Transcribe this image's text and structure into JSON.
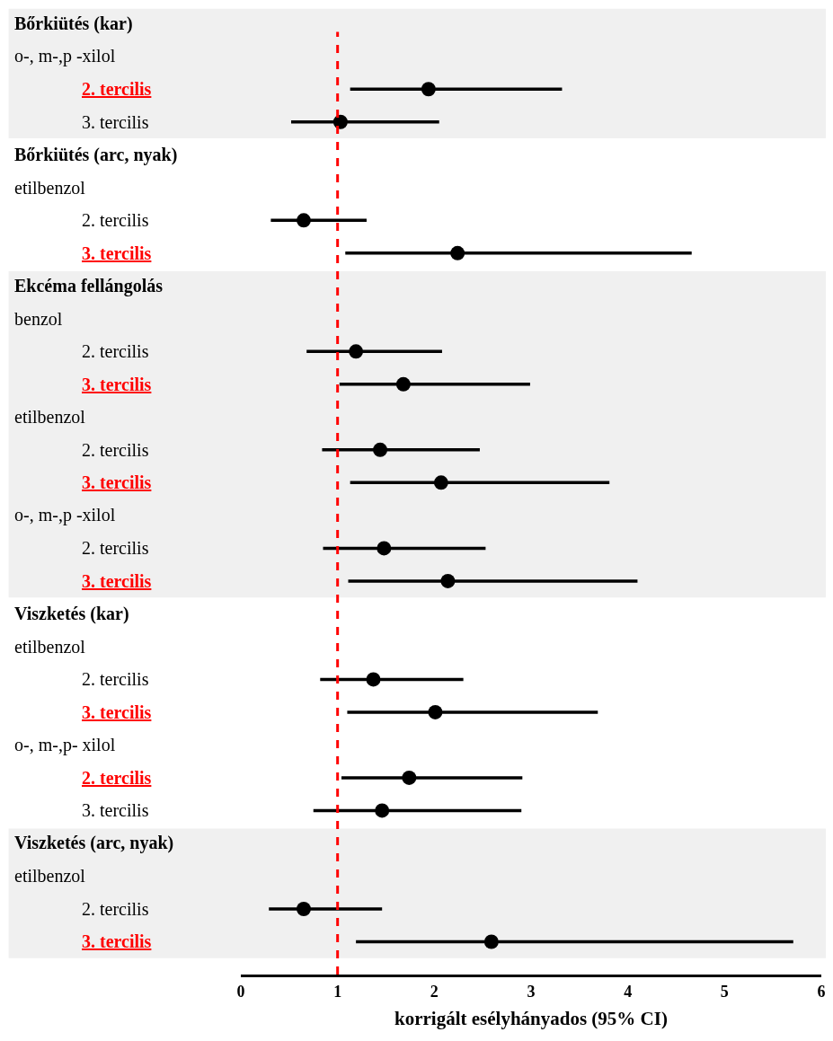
{
  "chart_data": {
    "type": "scatter",
    "orientation": "horizontal",
    "categories": [
      null,
      null,
      "2. tercilis",
      "3. tercilis",
      null,
      null,
      "2. tercilis",
      "3. tercilis",
      null,
      null,
      "2. tercilis",
      "3. tercilis",
      null,
      "2. tercilis",
      "3. tercilis",
      null,
      "2. tercilis",
      "3. tercilis",
      null,
      null,
      "2. tercilis",
      "3. tercilis",
      null,
      "2. tercilis",
      "3. tercilis",
      null,
      null,
      "2. tercilis",
      "3. tercilis"
    ],
    "annotations": [
      "Bőrkiütés (kar)",
      "o-, m-,p -xilol",
      "Bőrkiütés (arc, nyak)",
      "etilbenzol",
      "Ekcéma fellángolás",
      "benzol",
      "etilbenzol",
      "o-, m-,p -xilol",
      "Viszketés (kar)",
      "etilbenzol",
      "o-, m-,p- xilol",
      "Viszketés (arc, nyak)",
      "etilbenzol"
    ],
    "values": [
      null,
      null,
      1.94,
      1.03,
      null,
      null,
      0.65,
      2.24,
      null,
      null,
      1.19,
      1.68,
      null,
      1.44,
      2.07,
      null,
      1.48,
      2.14,
      null,
      null,
      1.37,
      2.01,
      null,
      1.74,
      1.46,
      null,
      null,
      0.65,
      2.59
    ],
    "errors": [
      null,
      null,
      [
        1.13,
        3.32
      ],
      [
        0.52,
        2.05
      ],
      null,
      null,
      [
        0.31,
        1.3
      ],
      [
        1.08,
        4.66
      ],
      null,
      null,
      [
        0.68,
        2.08
      ],
      [
        1.02,
        2.99
      ],
      null,
      [
        0.84,
        2.47
      ],
      [
        1.13,
        3.81
      ],
      null,
      [
        0.85,
        2.53
      ],
      [
        1.11,
        4.1
      ],
      null,
      null,
      [
        0.82,
        2.3
      ],
      [
        1.1,
        3.69
      ],
      null,
      [
        1.04,
        2.91
      ],
      [
        0.75,
        2.9
      ],
      null,
      null,
      [
        0.29,
        1.46
      ],
      [
        1.19,
        5.71
      ]
    ],
    "color": "#000000",
    "marker": "circle",
    "xlabel": "korrigált esélyhányados (95% CI)",
    "xlim": [
      0,
      6
    ],
    "xticks": [
      0,
      1,
      2,
      3,
      4,
      5,
      6
    ],
    "ref_lines": [
      {
        "axis": "x",
        "value": 1,
        "color": "#ff0000",
        "line_style": "dashed"
      }
    ],
    "grid": false,
    "legend": false
  }
}
